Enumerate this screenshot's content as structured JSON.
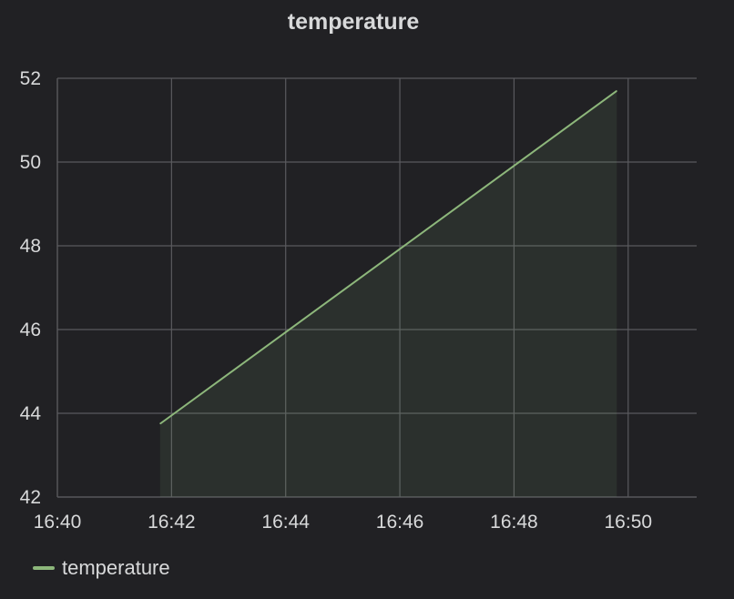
{
  "panel": {
    "title": "temperature"
  },
  "colors": {
    "background": "#212124",
    "series": "#8db77b",
    "grid": "#5a5a5e",
    "text": "#d8d9da"
  },
  "chart_data": {
    "type": "area",
    "title": "temperature",
    "xlabel": "",
    "ylabel": "",
    "x_ticks": [
      "16:40",
      "16:42",
      "16:44",
      "16:46",
      "16:48",
      "16:50"
    ],
    "x_tick_minutes": [
      0,
      2,
      4,
      6,
      8,
      10
    ],
    "xlim": [
      "16:40",
      "16:51.2"
    ],
    "y_ticks": [
      42,
      44,
      46,
      48,
      50,
      52
    ],
    "ylim": [
      42,
      52
    ],
    "grid": true,
    "legend": "bottom-left",
    "series": [
      {
        "name": "temperature",
        "x": [
          "16:41:48",
          "16:49:48"
        ],
        "y": [
          43.75,
          51.7
        ]
      }
    ]
  },
  "legend": {
    "items": [
      {
        "label": "temperature"
      }
    ]
  }
}
